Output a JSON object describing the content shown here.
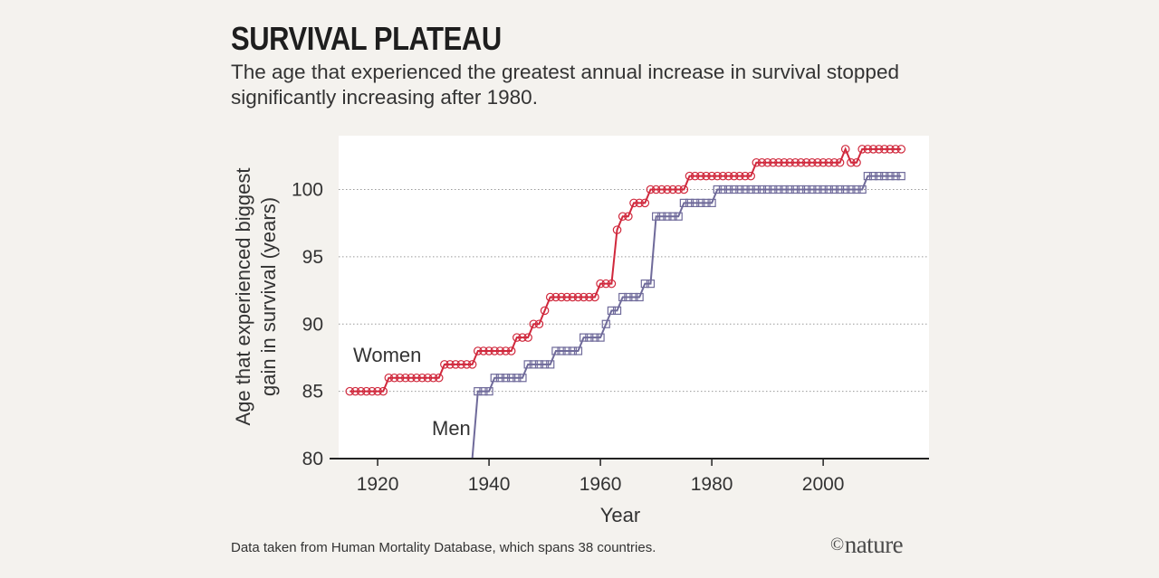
{
  "header": {
    "title": "SURVIVAL PLATEAU",
    "subtitle": "The age that experienced the greatest annual increase in survival stopped significantly increasing after 1980."
  },
  "footer": {
    "source_note": "Data taken from Human Mortality Database, which spans 38 countries.",
    "logo_symbol": "©",
    "logo_text": "nature"
  },
  "chart_data": {
    "type": "line",
    "title": "SURVIVAL PLATEAU",
    "xlabel": "Year",
    "ylabel_lines": [
      "Age that experienced biggest",
      "gain in survival (years)"
    ],
    "xlim": [
      1913,
      2019
    ],
    "ylim": [
      80,
      104
    ],
    "xticks": [
      1920,
      1940,
      1960,
      1980,
      2000
    ],
    "yticks": [
      80,
      85,
      90,
      95,
      100
    ],
    "grid": "horizontal dotted",
    "colors": {
      "women": "#d0283c",
      "men": "#6f6a9a",
      "background": "#ffffff"
    },
    "series": [
      {
        "name": "Women",
        "marker": "circle",
        "x": [
          1915,
          1916,
          1917,
          1918,
          1919,
          1920,
          1921,
          1922,
          1923,
          1924,
          1925,
          1926,
          1927,
          1928,
          1929,
          1930,
          1931,
          1932,
          1933,
          1934,
          1935,
          1936,
          1937,
          1938,
          1939,
          1940,
          1941,
          1942,
          1943,
          1944,
          1945,
          1946,
          1947,
          1948,
          1949,
          1950,
          1951,
          1952,
          1953,
          1954,
          1955,
          1956,
          1957,
          1958,
          1959,
          1960,
          1961,
          1962,
          1963,
          1964,
          1965,
          1966,
          1967,
          1968,
          1969,
          1970,
          1971,
          1972,
          1973,
          1974,
          1975,
          1976,
          1977,
          1978,
          1979,
          1980,
          1981,
          1982,
          1983,
          1984,
          1985,
          1986,
          1987,
          1988,
          1989,
          1990,
          1991,
          1992,
          1993,
          1994,
          1995,
          1996,
          1997,
          1998,
          1999,
          2000,
          2001,
          2002,
          2003,
          2004,
          2005,
          2006,
          2007,
          2008,
          2009,
          2010,
          2011,
          2012,
          2013,
          2014
        ],
        "y": [
          85,
          85,
          85,
          85,
          85,
          85,
          85,
          86,
          86,
          86,
          86,
          86,
          86,
          86,
          86,
          86,
          86,
          87,
          87,
          87,
          87,
          87,
          87,
          88,
          88,
          88,
          88,
          88,
          88,
          88,
          89,
          89,
          89,
          90,
          90,
          91,
          92,
          92,
          92,
          92,
          92,
          92,
          92,
          92,
          92,
          93,
          93,
          93,
          97,
          98,
          98,
          99,
          99,
          99,
          100,
          100,
          100,
          100,
          100,
          100,
          100,
          101,
          101,
          101,
          101,
          101,
          101,
          101,
          101,
          101,
          101,
          101,
          101,
          102,
          102,
          102,
          102,
          102,
          102,
          102,
          102,
          102,
          102,
          102,
          102,
          102,
          102,
          102,
          102,
          103,
          102,
          102,
          103,
          103,
          103,
          103,
          103,
          103,
          103,
          103
        ]
      },
      {
        "name": "Men",
        "marker": "square",
        "x": [
          1937,
          1938,
          1939,
          1940,
          1941,
          1942,
          1943,
          1944,
          1945,
          1946,
          1947,
          1948,
          1949,
          1950,
          1951,
          1952,
          1953,
          1954,
          1955,
          1956,
          1957,
          1958,
          1959,
          1960,
          1961,
          1962,
          1963,
          1964,
          1965,
          1966,
          1967,
          1968,
          1969,
          1970,
          1971,
          1972,
          1973,
          1974,
          1975,
          1976,
          1977,
          1978,
          1979,
          1980,
          1981,
          1982,
          1983,
          1984,
          1985,
          1986,
          1987,
          1988,
          1989,
          1990,
          1991,
          1992,
          1993,
          1994,
          1995,
          1996,
          1997,
          1998,
          1999,
          2000,
          2001,
          2002,
          2003,
          2004,
          2005,
          2006,
          2007,
          2008,
          2009,
          2010,
          2011,
          2012,
          2013,
          2014
        ],
        "y": [
          80,
          85,
          85,
          85,
          86,
          86,
          86,
          86,
          86,
          86,
          87,
          87,
          87,
          87,
          87,
          88,
          88,
          88,
          88,
          88,
          89,
          89,
          89,
          89,
          90,
          91,
          91,
          92,
          92,
          92,
          92,
          93,
          93,
          98,
          98,
          98,
          98,
          98,
          99,
          99,
          99,
          99,
          99,
          99,
          100,
          100,
          100,
          100,
          100,
          100,
          100,
          100,
          100,
          100,
          100,
          100,
          100,
          100,
          100,
          100,
          100,
          100,
          100,
          100,
          100,
          100,
          100,
          100,
          100,
          100,
          100,
          101,
          101,
          101,
          101,
          101,
          101,
          101
        ]
      }
    ],
    "annotations": [
      {
        "text": "Women",
        "series": "Women"
      },
      {
        "text": "Men",
        "series": "Men"
      }
    ]
  }
}
